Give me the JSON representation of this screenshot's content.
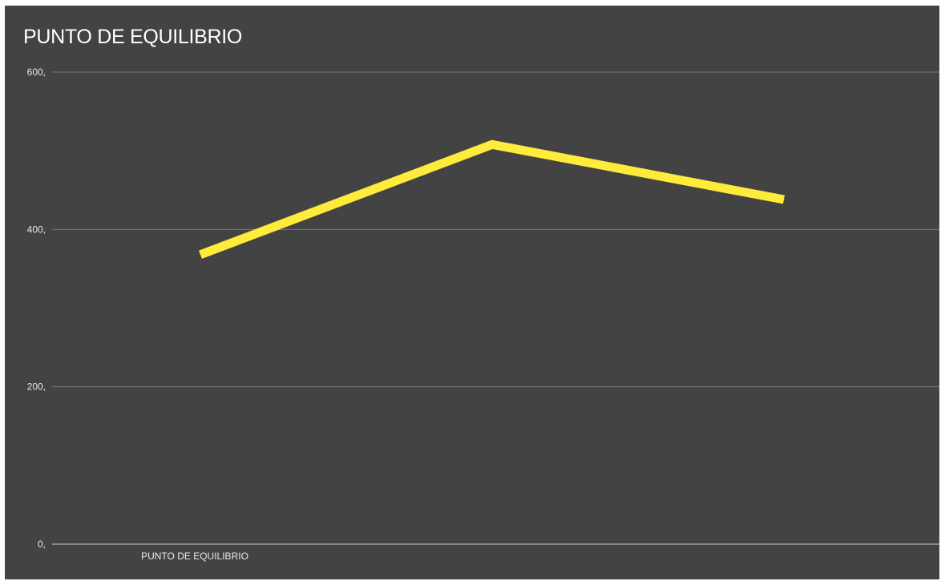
{
  "chart_data": {
    "type": "line",
    "title": "PUNTO DE EQUILIBRIO",
    "xlabel": "",
    "ylabel": "",
    "categories": [
      "PUNTO DE EQUILIBRIO",
      "",
      ""
    ],
    "series": [
      {
        "values": [
          368,
          508,
          438
        ],
        "color": "#ffeb3b"
      }
    ],
    "ylim": [
      0,
      600
    ],
    "yticks": [
      0,
      200,
      400,
      600
    ],
    "ytick_labels": [
      "0,",
      "200,",
      "400,",
      "600,"
    ],
    "grid": true,
    "legend": "none",
    "colors": {
      "background": "#434343",
      "gridline": "#777777",
      "baseline": "#cccccc",
      "text": "#ffffff"
    }
  }
}
